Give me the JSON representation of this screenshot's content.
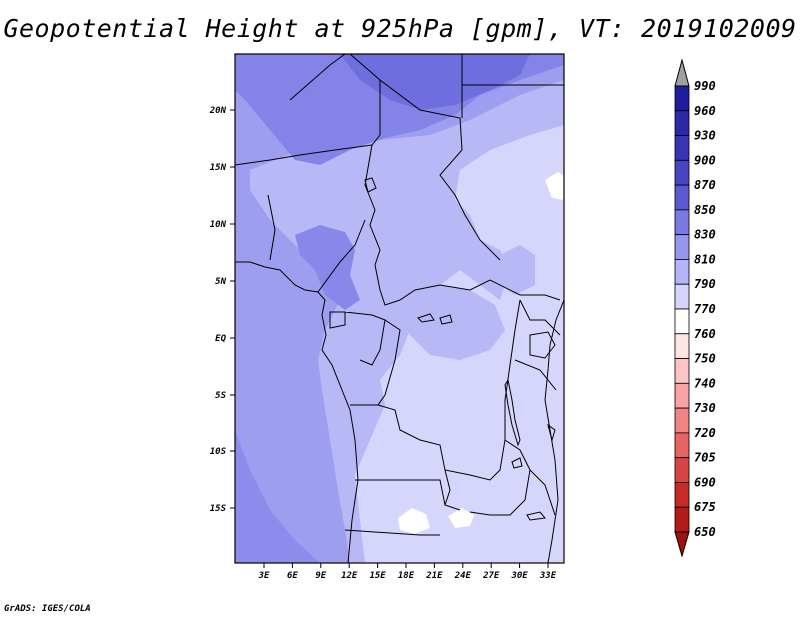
{
  "title": "Geopotential Height at 925hPa [gpm], VT: 2019102009",
  "credit": "GrADS: IGES/COLA",
  "map": {
    "lat_labels": [
      "20N",
      "15N",
      "10N",
      "5N",
      "EQ",
      "5S",
      "10S",
      "15S"
    ],
    "lon_labels": [
      "3E",
      "6E",
      "9E",
      "12E",
      "15E",
      "18E",
      "21E",
      "24E",
      "27E",
      "30E",
      "33E"
    ]
  },
  "colorbar": {
    "levels": [
      "990",
      "960",
      "930",
      "900",
      "870",
      "850",
      "830",
      "810",
      "790",
      "770",
      "760",
      "750",
      "740",
      "730",
      "720",
      "705",
      "690",
      "675",
      "650"
    ],
    "colors": {
      "over": "#a0a0a0",
      "c960": "#1e1e9a",
      "c930": "#2a2aa6",
      "c900": "#3636b2",
      "c870": "#4646c0",
      "c850": "#5a5ad0",
      "c830": "#7a7ae4",
      "c810": "#9696ee",
      "c790": "#b4b4f6",
      "c770": "#d4d4fc",
      "c760": "#ffffff",
      "c750": "#ffe4e4",
      "c740": "#fcc4c4",
      "c730": "#f8a4a4",
      "c720": "#f08484",
      "c705": "#e66464",
      "c690": "#d84444",
      "c675": "#c82a2a",
      "c650": "#b41a1a",
      "under": "#a01010"
    }
  }
}
